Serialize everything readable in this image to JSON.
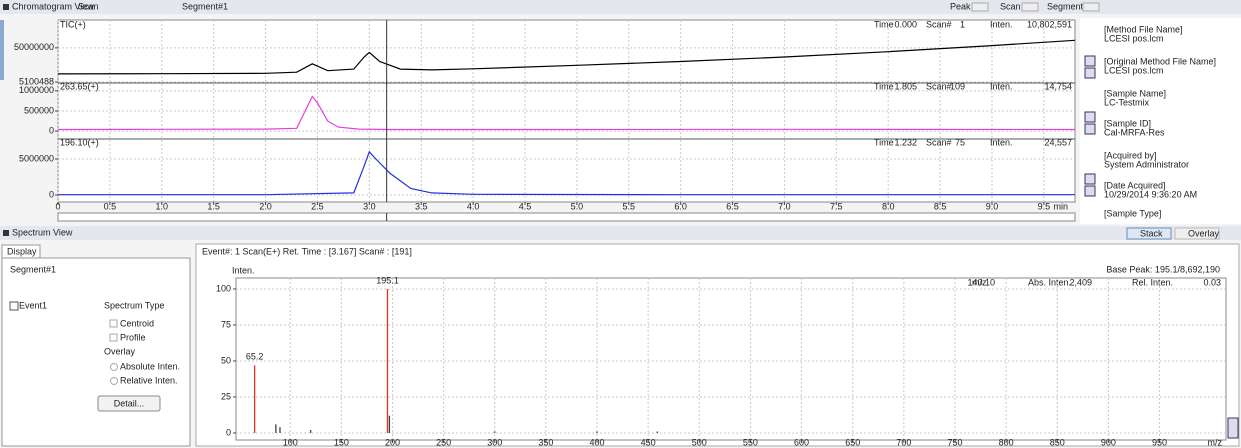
{
  "chromatogram_view": {
    "title": "Chromatogram View",
    "mode": "Scan",
    "segment": "Segment#1",
    "toolbar": [
      "Peak",
      "Scan",
      "Segment"
    ],
    "info_labels": [
      "Time",
      "Scan#",
      "Inten."
    ],
    "xlim": [
      0,
      9.8
    ],
    "xticks": [
      0,
      0.5,
      {
        "value": 1,
        "label": "1.0"
      },
      1.5,
      {
        "value": 2,
        "label": "2.0"
      },
      2.5,
      {
        "value": 3,
        "label": "3.0"
      },
      3.5,
      {
        "value": 4,
        "label": "4.0"
      },
      4.5,
      {
        "value": 5,
        "label": "5.0"
      },
      5.5,
      {
        "value": 6,
        "label": "6.0"
      },
      6.5,
      {
        "value": 7,
        "label": "7.0"
      },
      7.5,
      {
        "value": 8,
        "label": "8.0"
      },
      8.5,
      {
        "value": 9,
        "label": "9.0"
      },
      9.5
    ],
    "x_unit": "min",
    "cursor_time": 3.167,
    "traces": [
      {
        "label": "TIC(+)",
        "color": "#000000",
        "label_color": "#000000",
        "ylim": [
          5100488,
          84000000
        ],
        "yticks": [
          5100488,
          50000000
        ],
        "info": {
          "time": {
            "value": 0,
            "label": "0.000"
          },
          "scan": 1,
          "inten": {
            "value": 10802591,
            "label": "10,802,591"
          }
        },
        "x": [
          0,
          1,
          2,
          2.3,
          2.45,
          2.6,
          2.85,
          2.95,
          3.0,
          3.1,
          3.3,
          3.6,
          4,
          5,
          6,
          7,
          8,
          9,
          9.8
        ],
        "values": [
          15700000,
          16000000,
          16500000,
          18000000,
          29000000,
          20000000,
          22000000,
          38000000,
          44000000,
          32000000,
          22000000,
          21000000,
          22500000,
          27000000,
          32000000,
          38000000,
          45000000,
          53000000,
          60000000
        ]
      },
      {
        "label": "263.65(+)",
        "color": "#e040e0",
        "label_color": "#e040e0",
        "ylim": [
          -170000,
          1170000
        ],
        "yticks": [
          0,
          500000,
          1000000
        ],
        "info": {
          "time": 1.805,
          "scan": 109,
          "inten": {
            "value": 14754,
            "label": "14,754"
          }
        },
        "x": [
          0,
          1,
          2,
          2.3,
          2.4,
          2.45,
          2.5,
          2.6,
          2.7,
          2.9,
          3.2,
          5,
          7,
          9.8
        ],
        "values": [
          40000,
          45000,
          50000,
          70000,
          600000,
          860000,
          700000,
          250000,
          100000,
          50000,
          40000,
          40000,
          45000,
          40000
        ]
      },
      {
        "label": "196.10(+)",
        "color": "#2030e0",
        "label_color": "#2030e0",
        "ylim": [
          -690000,
          7640000
        ],
        "yticks": [
          0,
          5000000
        ],
        "info": {
          "time": 1.232,
          "scan": 75,
          "inten": {
            "value": 24557,
            "label": "24,557"
          }
        },
        "x": [
          0,
          2,
          2.85,
          2.95,
          3.0,
          3.05,
          3.2,
          3.4,
          3.6,
          4,
          6,
          9.8
        ],
        "values": [
          50000,
          50000,
          300000,
          4000000,
          6000000,
          5200000,
          3000000,
          900000,
          300000,
          100000,
          50000,
          50000
        ]
      }
    ]
  },
  "file_info": [
    {
      "label": "[Method File Name]",
      "value": "LCESI pos.lcm"
    },
    {
      "label": "[Original Method File Name]",
      "value": "LCESI pos.lcm"
    },
    {
      "label": "[Sample Name]",
      "value": "LC-Testmix"
    },
    {
      "label": "[Sample ID]",
      "value": "Cal-MRFA-Res"
    },
    {
      "label": "[Acquired by]",
      "value": "System Administrator"
    },
    {
      "label": "[Date Acquired]",
      "value": "10/29/2014 9:36:20 AM"
    },
    {
      "label": "[Sample Type]"
    }
  ],
  "spectrum_view": {
    "title": "Spectrum View",
    "buttons": [
      "Stack",
      "Overlay"
    ],
    "tab": "Display",
    "segment": "Segment#1",
    "event": "Event1",
    "spectrum_type": "Spectrum Type",
    "options": [
      "Centroid",
      "Profile"
    ],
    "overlay": "Overlay",
    "overlay_options": [
      "Absolute Inten.",
      "Relative Inten."
    ],
    "detail_button": "Detail...",
    "header": "Event#: 1 Scan(E+)   Ret. Time : [3.167]   Scan# : [191]",
    "y_label": "Inten.",
    "base_peak": "Base Peak: 195.1/8,692,190",
    "info": [
      "m/z",
      "140.10",
      "Abs. Inten.",
      "2,409",
      "Rel. Inten.",
      "0.03"
    ],
    "ylim": [
      -4.9,
      107.6
    ],
    "yticks": [
      0,
      25,
      50,
      75,
      100
    ],
    "xlim": [
      47,
      1015
    ],
    "xticks": [
      100,
      150,
      200,
      250,
      300,
      350,
      400,
      450,
      500,
      550,
      600,
      650,
      700,
      750,
      800,
      850,
      900,
      950
    ],
    "x_unit": "m/z",
    "peaks": {
      "mz": [
        65.2,
        86,
        90,
        120,
        195.1,
        197,
        300,
        400,
        459
      ],
      "inten": [
        47,
        6,
        4,
        2,
        100,
        12,
        1,
        1,
        1
      ],
      "colors": [
        "#e03020",
        "#404040",
        "#404040",
        "#404040",
        "#e03020",
        "#404040",
        "#404040",
        "#404040",
        "#404040"
      ],
      "labeled": [
        0,
        4
      ],
      "label_color": "#2030d0"
    }
  }
}
